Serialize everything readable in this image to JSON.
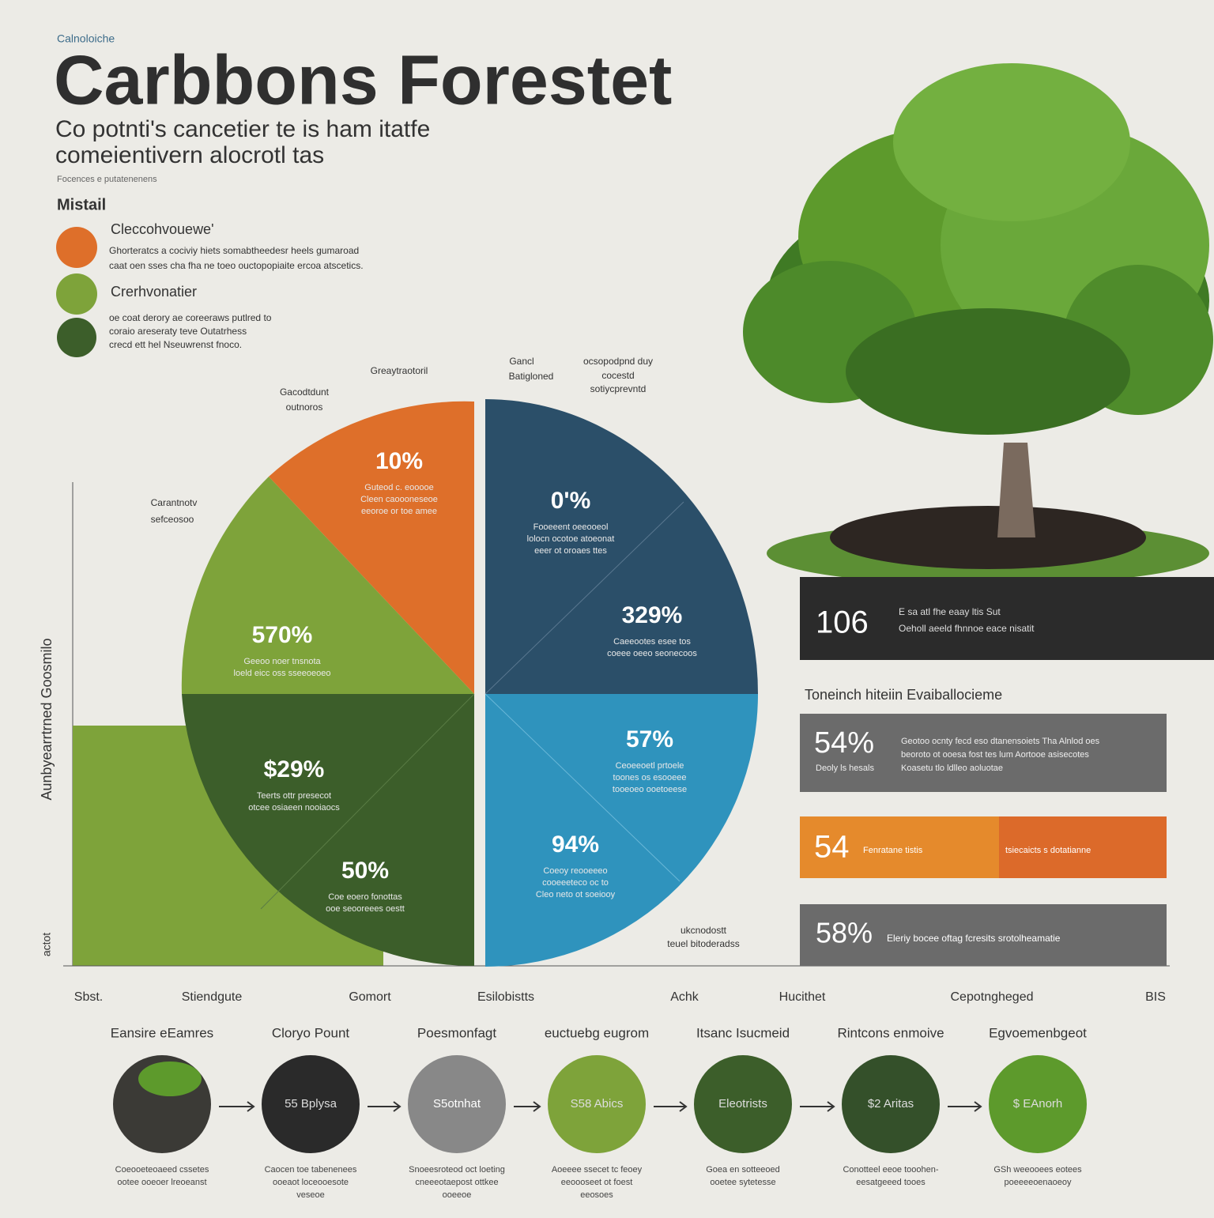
{
  "header": {
    "kicker": "Calnoloiche",
    "title": "Carbbons Forestet",
    "subtitle": [
      "Co potnti's cancetier te is ham itatfe",
      "comeientivern alocrotl tas"
    ],
    "note": "Focences e putatenenens"
  },
  "legend": {
    "heading": "Mistail",
    "items": [
      {
        "label": "Cleccohvouewe'",
        "text": [
          "Ghorteratcs a cociviy hiets somabtheedesr heels gumaroad",
          "caat oen sses cha fha ne toeo ouctopopiaite ercoa atscetics."
        ]
      },
      {
        "label": "Crerhvonatier",
        "text": [
          "oe coat derory ae coreeraws putlred to",
          "coraio areseraty teve Outatrhess",
          "crecd ett hel Nseuwrenst fnoco."
        ]
      }
    ]
  },
  "pie": {
    "callouts": [
      "Greaytraotoril",
      "Gacodtdunt",
      "outnoros",
      "Carantnotv",
      "sefceosoo",
      "Gancl",
      "Batigloned",
      "ocsopodpnd duy",
      "cocestd",
      "sotiycprevntd",
      "ukcnodostt",
      "teuel bitoderadss"
    ],
    "segments": [
      {
        "value": "10%",
        "text": [
          "Guteod c. eooooe",
          "Cleen caoooneseoe",
          "eeoroe or toe amee"
        ]
      },
      {
        "value": "570%",
        "text": [
          "Geeoo noer tnsnota",
          "loeld eicc oss sseeoeoeo"
        ]
      },
      {
        "value": "$29%",
        "text": [
          "Teerts ottr presecot",
          "otcee osiaeen nooiaocs"
        ]
      },
      {
        "value": "50%",
        "text": [
          "Coe eoero fonottas",
          "ooe seooreees oestt"
        ]
      },
      {
        "value": "0'%",
        "text": [
          "Fooeeent oeeooeol",
          "lolocn ocotoe atoeonat",
          "eeer ot oroaes ttes"
        ]
      },
      {
        "value": "329%",
        "text": [
          "Caeeootes esee tos",
          "coeee oeeo seonecoos"
        ]
      },
      {
        "value": "57%",
        "text": [
          "Ceoeeoetl prtoele",
          "toones os esooeee",
          "tooeoeo ooetoeese"
        ]
      },
      {
        "value": "94%",
        "text": [
          "Coeoy reooeeeo",
          "cooeeeteco oc to",
          "Cleo neto ot soeiooy"
        ]
      }
    ],
    "y_label": "Aunbyearrtrned Goosmilo",
    "y_bottom": "actot"
  },
  "x_labels": [
    "Sbst.",
    "Stiendgute",
    "Gomort",
    "Esilobistts",
    "Achk",
    "Hucithet",
    "Cepotngheged",
    "BIS"
  ],
  "right": {
    "banner": {
      "value": "106",
      "text": [
        "E sa atl fhe eaay ltis Sut",
        "Oeholl aeeld fhnnoe eace nisatit"
      ]
    },
    "heading": "Toneinch hiteiin Evaiballocieme",
    "panels": [
      {
        "value": "54%",
        "sub": "Deoly ls hesals",
        "text": [
          "Geotoo ocnty fecd eso dtanensoiets Tha Alnlod oes",
          "beoroto ot ooesa fost tes lum Aortooe asisecotes",
          "Koasetu tlo ldlleo aoluotae"
        ]
      },
      {
        "value": "54",
        "sub": "Fenratane tistis",
        "text": [
          "tsiecaicts s dotatianne"
        ]
      },
      {
        "value": "58%",
        "sub": "",
        "text": [
          "Eleriy bocee oftag fcresits srotolheamatie"
        ]
      }
    ]
  },
  "steps": [
    {
      "title": "Eansire eEamres",
      "inner": "",
      "caption": [
        "Coeooeteoaeed cssetes",
        "ootee ooeoer lreoeanst"
      ]
    },
    {
      "title": "Cloryo Pount",
      "inner": "55 Bplysa",
      "caption": [
        "Caocen toe tabenenees",
        "ooeaot loceooesote",
        "veseoe"
      ]
    },
    {
      "title": "Poesmonfagt",
      "inner": "S5otnhat",
      "caption": [
        "Snoeesroteod oct loeting",
        "cneeeotaepost ottkee",
        "ooeeoe"
      ]
    },
    {
      "title": "euctuebg eugrom",
      "inner": "S58 Abics",
      "caption": [
        "Aoeeee ssecet tc feoey",
        "eeoooseet ot foest",
        "eeosoes"
      ]
    },
    {
      "title": "Itsanc Isucmeid",
      "inner": "Eleotrists",
      "caption": [
        "Goea en sotteeoed",
        "ooetee sytetesse"
      ]
    },
    {
      "title": "Rintcons enmoive",
      "inner": "$2 Aritas",
      "caption": [
        "Conotteel eeoe tooohen-",
        "eesatgeeed tooes"
      ]
    },
    {
      "title": "Egvoemenbgeot",
      "inner": "$ EAnorh",
      "caption": [
        "GSh weeooees eotees",
        "poeeeeoenaoeoy"
      ]
    }
  ]
}
